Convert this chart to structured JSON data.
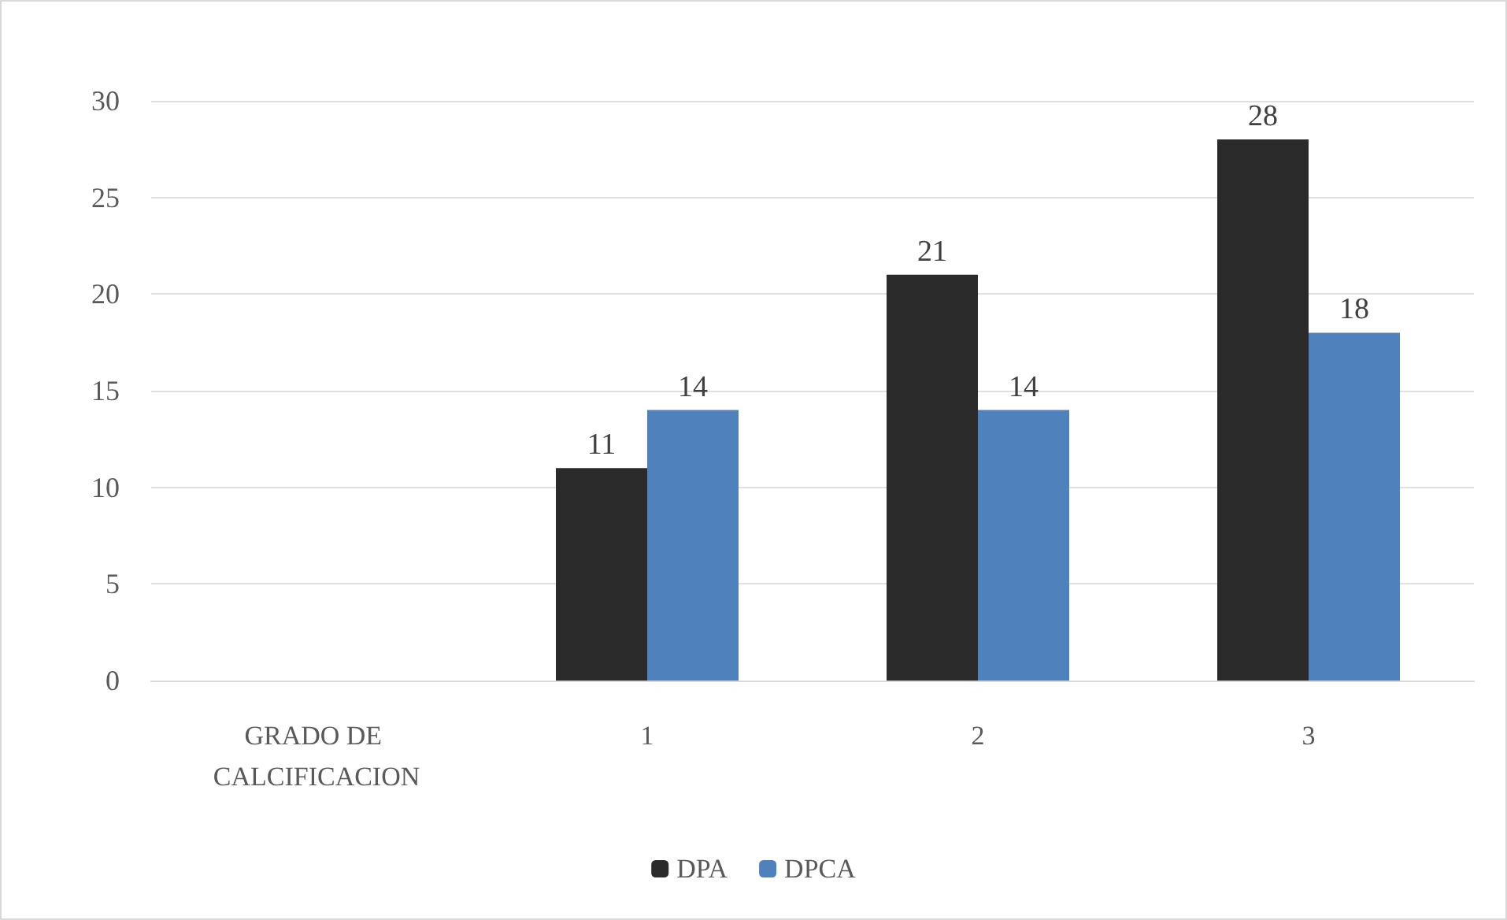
{
  "chart_data": {
    "type": "bar",
    "categories": [
      "GRADO DE CALCIFICACION",
      "1",
      "2",
      "3"
    ],
    "series": [
      {
        "name": "DPA",
        "color": "#2b2b2b",
        "values": [
          null,
          11,
          21,
          28
        ]
      },
      {
        "name": "DPCA",
        "color": "#4f81bd",
        "values": [
          null,
          14,
          14,
          18
        ]
      }
    ],
    "ylim": [
      0,
      30
    ],
    "yticks": [
      0,
      5,
      10,
      15,
      20,
      25,
      30
    ],
    "grid": "y",
    "legend": "bottom",
    "data_labels": true
  }
}
